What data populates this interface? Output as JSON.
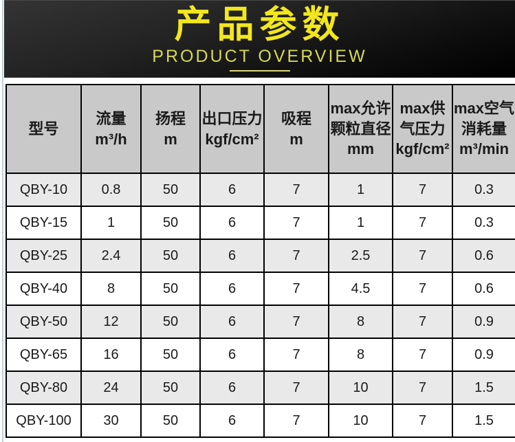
{
  "banner": {
    "title": "产品参数",
    "subtitle": "PRODUCT OVERVIEW"
  },
  "colors": {
    "banner_bg_top": "#343434",
    "banner_bg_bottom": "#000000",
    "title_yellow": "#f2e71c",
    "subtitle_yellow_green": "#d5da52",
    "underline_yellow": "#ddd878",
    "header_bg": "#c9c9c9",
    "row_alt_bg": "#e9e9e9",
    "row_bg": "#ffffff",
    "table_border": "#000000",
    "left_rule_blue": "#bccfe2",
    "text": "#1a1a1a"
  },
  "table": {
    "headers": [
      {
        "name": "model",
        "lines": [
          "型号"
        ]
      },
      {
        "name": "flow",
        "lines": [
          "流量",
          "m³/h"
        ]
      },
      {
        "name": "head",
        "lines": [
          "扬程",
          "m"
        ]
      },
      {
        "name": "outlet-pressure",
        "lines": [
          "出口压力",
          "kgf/cm²"
        ]
      },
      {
        "name": "suction-lift",
        "lines": [
          "吸程",
          "m"
        ]
      },
      {
        "name": "max-particle-diameter",
        "lines": [
          "max允许",
          "颗粒直径",
          "mm"
        ]
      },
      {
        "name": "max-air-supply-pressure",
        "lines": [
          "max供",
          "气压力",
          "kgf/cm²"
        ]
      },
      {
        "name": "max-air-consumption",
        "lines": [
          "max空气",
          "消耗量",
          "m³/min"
        ]
      }
    ],
    "rows": [
      [
        "QBY-10",
        "0.8",
        "50",
        "6",
        "7",
        "1",
        "7",
        "0.3"
      ],
      [
        "QBY-15",
        "1",
        "50",
        "6",
        "7",
        "1",
        "7",
        "0.3"
      ],
      [
        "QBY-25",
        "2.4",
        "50",
        "6",
        "7",
        "2.5",
        "7",
        "0.6"
      ],
      [
        "QBY-40",
        "8",
        "50",
        "6",
        "7",
        "4.5",
        "7",
        "0.6"
      ],
      [
        "QBY-50",
        "12",
        "50",
        "6",
        "7",
        "8",
        "7",
        "0.9"
      ],
      [
        "QBY-65",
        "16",
        "50",
        "6",
        "7",
        "8",
        "7",
        "0.9"
      ],
      [
        "QBY-80",
        "24",
        "50",
        "6",
        "7",
        "10",
        "7",
        "1.5"
      ],
      [
        "QBY-100",
        "30",
        "50",
        "6",
        "7",
        "10",
        "7",
        "1.5"
      ]
    ]
  }
}
